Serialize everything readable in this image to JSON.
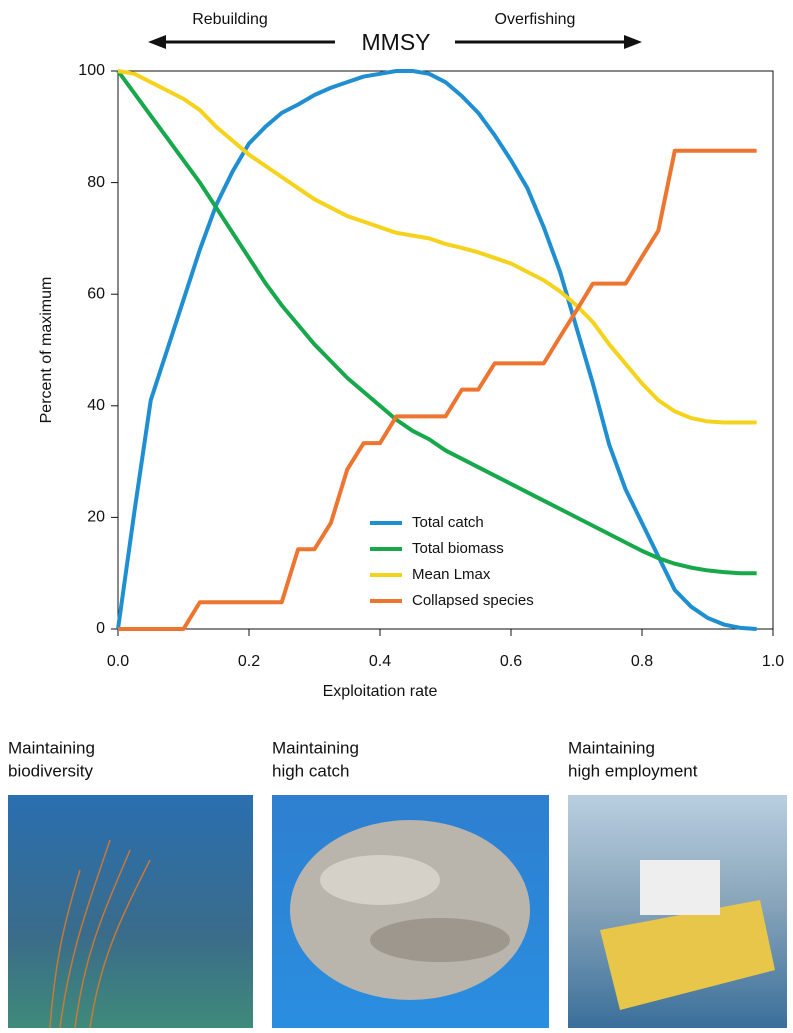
{
  "chart_data": {
    "type": "line",
    "annotations": {
      "left": "Rebuilding",
      "center": "MMSY",
      "right": "Overfishing"
    },
    "x_label": "Exploitation rate",
    "y_label": "Percent of maximum",
    "x": [
      0,
      0.025,
      0.05,
      0.075,
      0.1,
      0.125,
      0.15,
      0.175,
      0.2,
      0.225,
      0.25,
      0.275,
      0.3,
      0.325,
      0.35,
      0.375,
      0.4,
      0.425,
      0.45,
      0.475,
      0.5,
      0.525,
      0.55,
      0.575,
      0.6,
      0.625,
      0.65,
      0.675,
      0.7,
      0.725,
      0.75,
      0.775,
      0.8,
      0.825,
      0.85,
      0.875,
      0.9,
      0.925,
      0.95,
      0.975
    ],
    "series": [
      {
        "name": "Total catch",
        "color": "#1f8fd1",
        "values": [
          0,
          21,
          41,
          50,
          59,
          68,
          76,
          82,
          87,
          90,
          92.5,
          94,
          95.7,
          97,
          98,
          99,
          99.5,
          100,
          100,
          99.5,
          98,
          95.5,
          92.5,
          88.5,
          84,
          79,
          72,
          64,
          54,
          44,
          33,
          25,
          19,
          13,
          7,
          4,
          2,
          0.8,
          0.2,
          0
        ]
      },
      {
        "name": "Total biomass",
        "color": "#16a84a",
        "values": [
          100,
          96,
          92,
          88,
          84,
          80,
          75.5,
          71,
          66.5,
          62,
          58,
          54.5,
          51,
          48,
          45,
          42.5,
          40,
          37.5,
          35.5,
          34,
          32,
          30.5,
          29,
          27.5,
          26,
          24.5,
          23,
          21.5,
          20,
          18.5,
          17,
          15.5,
          14,
          12.7,
          11.7,
          11,
          10.5,
          10.2,
          10,
          10
        ]
      },
      {
        "name": "Mean Lmax",
        "color": "#f5d31c",
        "values": [
          100,
          99.5,
          98,
          96.5,
          95,
          93,
          90,
          87.5,
          85,
          83,
          81,
          79,
          77,
          75.5,
          74,
          73,
          72,
          71,
          70.5,
          70,
          69,
          68.3,
          67.5,
          66.5,
          65.5,
          64,
          62.5,
          60.5,
          58,
          55,
          51,
          47.5,
          44,
          41,
          39,
          37.8,
          37.2,
          37,
          37,
          37
        ]
      },
      {
        "name": "Collapsed species",
        "color": "#ee7530",
        "values": [
          0,
          0,
          0,
          0,
          0,
          4.8,
          4.8,
          4.8,
          4.8,
          4.8,
          4.8,
          14.3,
          14.3,
          19,
          28.6,
          33.3,
          33.3,
          38.1,
          38.1,
          38.1,
          38.1,
          42.9,
          42.9,
          47.6,
          47.6,
          47.6,
          47.6,
          52.4,
          57.1,
          61.9,
          61.9,
          61.9,
          66.7,
          71.4,
          85.7,
          85.7,
          85.7,
          85.7,
          85.7,
          85.7
        ]
      }
    ],
    "xlim": [
      0,
      1
    ],
    "xticks": [
      {
        "value": 0,
        "label": "0.0"
      },
      0.2,
      0.4,
      0.6,
      0.8,
      {
        "value": 1,
        "label": "1.0"
      }
    ],
    "ylim": [
      0,
      100
    ],
    "yticks": [
      0,
      20,
      40,
      60,
      80,
      100
    ],
    "legend": "bottom-center"
  },
  "panels": [
    {
      "caption": [
        "Maintaining",
        "biodiversity"
      ]
    },
    {
      "caption": [
        "Maintaining",
        "high catch"
      ]
    },
    {
      "caption": [
        "Maintaining",
        "high employment"
      ]
    }
  ]
}
